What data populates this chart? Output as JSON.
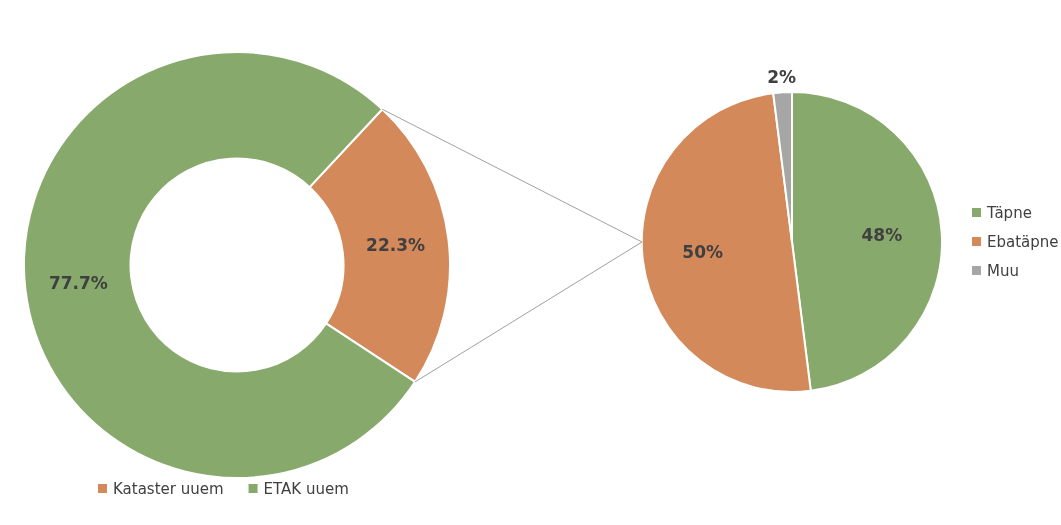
{
  "chart_data": [
    {
      "type": "donut",
      "categories": [
        "Kataster uuem",
        "ETAK uuem"
      ],
      "values": [
        22.3,
        77.7
      ],
      "colors": [
        "#d4895a",
        "#87a96b"
      ],
      "value_labels": [
        "22.3%",
        "77.7%"
      ],
      "legend": "bottom"
    },
    {
      "type": "pie",
      "categories": [
        "Täpne",
        "Ebatäpne",
        "Muu"
      ],
      "values": [
        48,
        50,
        2
      ],
      "colors": [
        "#87a96b",
        "#d4895a",
        "#a6a6a6"
      ],
      "value_labels": [
        "48%",
        "50%",
        "2%"
      ],
      "legend": "right"
    }
  ]
}
